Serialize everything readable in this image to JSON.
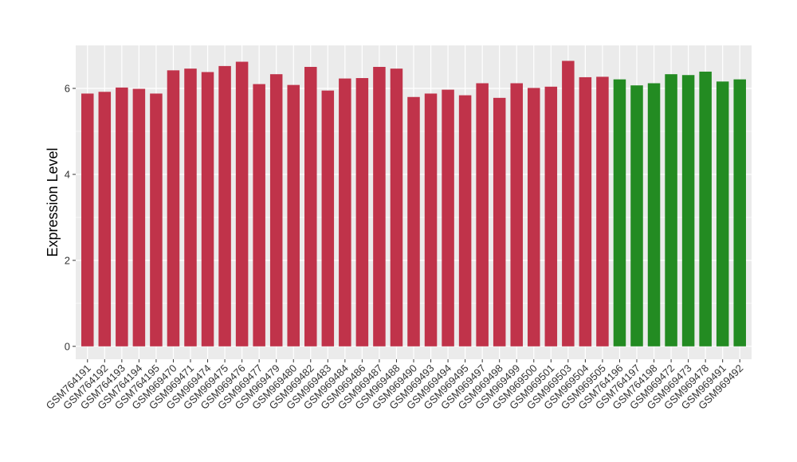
{
  "chart_data": {
    "type": "bar",
    "ylabel": "Expression Level",
    "xlabel": "",
    "ylim": [
      -0.3,
      7.0
    ],
    "yticks": [
      0,
      2,
      4,
      6
    ],
    "grid": true,
    "panel_background": "#ebebeb",
    "gridline_color": "#ffffff",
    "categories": [
      "GSM764191",
      "GSM764192",
      "GSM764193",
      "GSM764194",
      "GSM764195",
      "GSM969470",
      "GSM969471",
      "GSM969474",
      "GSM969475",
      "GSM969476",
      "GSM969477",
      "GSM969479",
      "GSM969480",
      "GSM969482",
      "GSM969483",
      "GSM969484",
      "GSM969486",
      "GSM969487",
      "GSM969488",
      "GSM969490",
      "GSM969493",
      "GSM969494",
      "GSM969495",
      "GSM969497",
      "GSM969498",
      "GSM969499",
      "GSM969500",
      "GSM969501",
      "GSM969503",
      "GSM969504",
      "GSM969505",
      "GSM764196",
      "GSM764197",
      "GSM764198",
      "GSM969472",
      "GSM969473",
      "GSM969478",
      "GSM969491",
      "GSM969492"
    ],
    "values": [
      5.88,
      5.92,
      6.02,
      5.99,
      5.88,
      6.42,
      6.46,
      6.38,
      6.52,
      6.62,
      6.1,
      6.33,
      6.08,
      6.5,
      5.95,
      6.23,
      6.24,
      6.5,
      6.46,
      5.8,
      5.88,
      5.97,
      5.84,
      6.12,
      5.78,
      6.12,
      6.01,
      6.04,
      6.64,
      6.26,
      6.27,
      6.21,
      6.07,
      6.12,
      6.33,
      6.31,
      6.39,
      6.16,
      6.21
    ],
    "bar_colors": [
      "#c0334a",
      "#c0334a",
      "#c0334a",
      "#c0334a",
      "#c0334a",
      "#c0334a",
      "#c0334a",
      "#c0334a",
      "#c0334a",
      "#c0334a",
      "#c0334a",
      "#c0334a",
      "#c0334a",
      "#c0334a",
      "#c0334a",
      "#c0334a",
      "#c0334a",
      "#c0334a",
      "#c0334a",
      "#c0334a",
      "#c0334a",
      "#c0334a",
      "#c0334a",
      "#c0334a",
      "#c0334a",
      "#c0334a",
      "#c0334a",
      "#c0334a",
      "#c0334a",
      "#c0334a",
      "#c0334a",
      "#238b22",
      "#238b22",
      "#238b22",
      "#238b22",
      "#238b22",
      "#238b22",
      "#238b22",
      "#238b22"
    ]
  }
}
